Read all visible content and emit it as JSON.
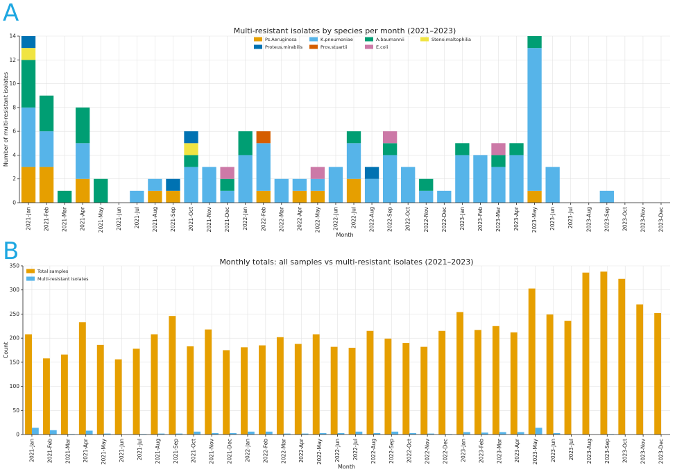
{
  "panel_labels": [
    "A",
    "B"
  ],
  "chart_data": [
    {
      "type": "bar",
      "stacked": true,
      "title": "Multi-resistant isolates by species per month (2021–2023)",
      "xlabel": "Month",
      "ylabel": "Number of multi-resistant isolates",
      "ylim": [
        0,
        14
      ],
      "yticks": [
        0,
        2,
        4,
        6,
        8,
        10,
        12,
        14
      ],
      "grid": true,
      "legend_position": "top-center",
      "categories": [
        "2021-Jan",
        "2021-Feb",
        "2021-Mar",
        "2021-Apr",
        "2021-May",
        "2021-Jun",
        "2021-Jul",
        "2021-Aug",
        "2021-Sep",
        "2021-Oct",
        "2021-Nov",
        "2021-Dec",
        "2022-Jan",
        "2022-Feb",
        "2022-Mar",
        "2022-Apr",
        "2022-May",
        "2022-Jun",
        "2022-Jul",
        "2022-Aug",
        "2022-Sep",
        "2022-Oct",
        "2022-Nov",
        "2022-Dec",
        "2023-Jan",
        "2023-Feb",
        "2023-Mar",
        "2023-Apr",
        "2023-May",
        "2023-Jun",
        "2023-Jul",
        "2023-Aug",
        "2023-Sep",
        "2023-Oct",
        "2023-Nov",
        "2023-Dec"
      ],
      "series": [
        {
          "name": "Ps.Aeruginosa",
          "color": "#E69F00",
          "values": [
            3,
            3,
            0,
            2,
            0,
            0,
            0,
            1,
            1,
            0,
            0,
            0,
            0,
            1,
            0,
            1,
            1,
            0,
            2,
            0,
            0,
            0,
            0,
            0,
            0,
            0,
            0,
            0,
            1,
            0,
            0,
            0,
            0,
            0,
            0,
            0
          ]
        },
        {
          "name": "K.pneumoniae",
          "color": "#56B4E9",
          "values": [
            5,
            3,
            0,
            3,
            0,
            0,
            1,
            1,
            0,
            3,
            3,
            1,
            4,
            4,
            2,
            1,
            1,
            3,
            3,
            2,
            4,
            3,
            1,
            1,
            4,
            4,
            3,
            4,
            12,
            3,
            0,
            0,
            1,
            0,
            0,
            0
          ]
        },
        {
          "name": "A.baumannii",
          "color": "#009E73",
          "values": [
            4,
            3,
            1,
            3,
            2,
            0,
            0,
            0,
            0,
            1,
            0,
            1,
            2,
            0,
            0,
            0,
            0,
            0,
            1,
            0,
            1,
            0,
            1,
            0,
            1,
            0,
            1,
            1,
            1,
            0,
            0,
            0,
            0,
            0,
            0,
            0
          ]
        },
        {
          "name": "Steno.maltophilia",
          "color": "#F0E442",
          "values": [
            1,
            0,
            0,
            0,
            0,
            0,
            0,
            0,
            0,
            1,
            0,
            0,
            0,
            0,
            0,
            0,
            0,
            0,
            0,
            0,
            0,
            0,
            0,
            0,
            0,
            0,
            0,
            0,
            0,
            0,
            0,
            0,
            0,
            0,
            0,
            0
          ]
        },
        {
          "name": "Proteus.mirabilis",
          "color": "#0072B2",
          "values": [
            1,
            0,
            0,
            0,
            0,
            0,
            0,
            0,
            1,
            1,
            0,
            0,
            0,
            0,
            0,
            0,
            0,
            0,
            0,
            1,
            0,
            0,
            0,
            0,
            0,
            0,
            0,
            0,
            0,
            0,
            0,
            0,
            0,
            0,
            0,
            0
          ]
        },
        {
          "name": "Prov.stuartii",
          "color": "#D55E00",
          "values": [
            0,
            0,
            0,
            0,
            0,
            0,
            0,
            0,
            0,
            0,
            0,
            0,
            0,
            1,
            0,
            0,
            0,
            0,
            0,
            0,
            0,
            0,
            0,
            0,
            0,
            0,
            0,
            0,
            0,
            0,
            0,
            0,
            0,
            0,
            0,
            0
          ]
        },
        {
          "name": "E.coli",
          "color": "#CC79A7",
          "values": [
            0,
            0,
            0,
            0,
            0,
            0,
            0,
            0,
            0,
            0,
            0,
            1,
            0,
            0,
            0,
            0,
            1,
            0,
            0,
            0,
            1,
            0,
            0,
            0,
            0,
            0,
            1,
            0,
            0,
            0,
            0,
            0,
            0,
            0,
            0,
            0
          ]
        }
      ]
    },
    {
      "type": "bar",
      "stacked": false,
      "title": "Monthly totals: all samples vs multi-resistant isolates (2021–2023)",
      "xlabel": "Month",
      "ylabel": "Count",
      "ylim": [
        0,
        350
      ],
      "yticks": [
        0,
        50,
        100,
        150,
        200,
        250,
        300,
        350
      ],
      "grid": true,
      "legend_position": "top-left",
      "categories": [
        "2021-Jan",
        "2021-Feb",
        "2021-Mar",
        "2021-Apr",
        "2021-May",
        "2021-Jun",
        "2021-Jul",
        "2021-Aug",
        "2021-Sep",
        "2021-Oct",
        "2021-Nov",
        "2021-Dec",
        "2022-Jan",
        "2022-Feb",
        "2022-Mar",
        "2022-Apr",
        "2022-May",
        "2022-Jun",
        "2022-Jul",
        "2022-Aug",
        "2022-Sep",
        "2022-Oct",
        "2022-Nov",
        "2022-Dec",
        "2023-Jan",
        "2023-Feb",
        "2023-Mar",
        "2023-Apr",
        "2023-May",
        "2023-Jun",
        "2023-Jul",
        "2023-Aug",
        "2023-Sep",
        "2023-Oct",
        "2023-Nov",
        "2023-Dec"
      ],
      "series": [
        {
          "name": "Total samples",
          "color": "#E69F00",
          "values": [
            208,
            158,
            166,
            233,
            186,
            156,
            178,
            208,
            246,
            183,
            218,
            175,
            181,
            185,
            202,
            188,
            208,
            182,
            180,
            215,
            199,
            190,
            182,
            215,
            254,
            217,
            225,
            212,
            303,
            249,
            236,
            336,
            338,
            323,
            270,
            252
          ]
        },
        {
          "name": "Multi-resistant isolates",
          "color": "#56B4E9",
          "values": [
            14,
            9,
            1,
            8,
            2,
            0,
            1,
            2,
            2,
            6,
            3,
            3,
            6,
            6,
            2,
            2,
            3,
            3,
            6,
            3,
            6,
            3,
            2,
            1,
            5,
            4,
            5,
            5,
            14,
            3,
            0,
            0,
            1,
            0,
            0,
            0
          ]
        }
      ]
    }
  ]
}
